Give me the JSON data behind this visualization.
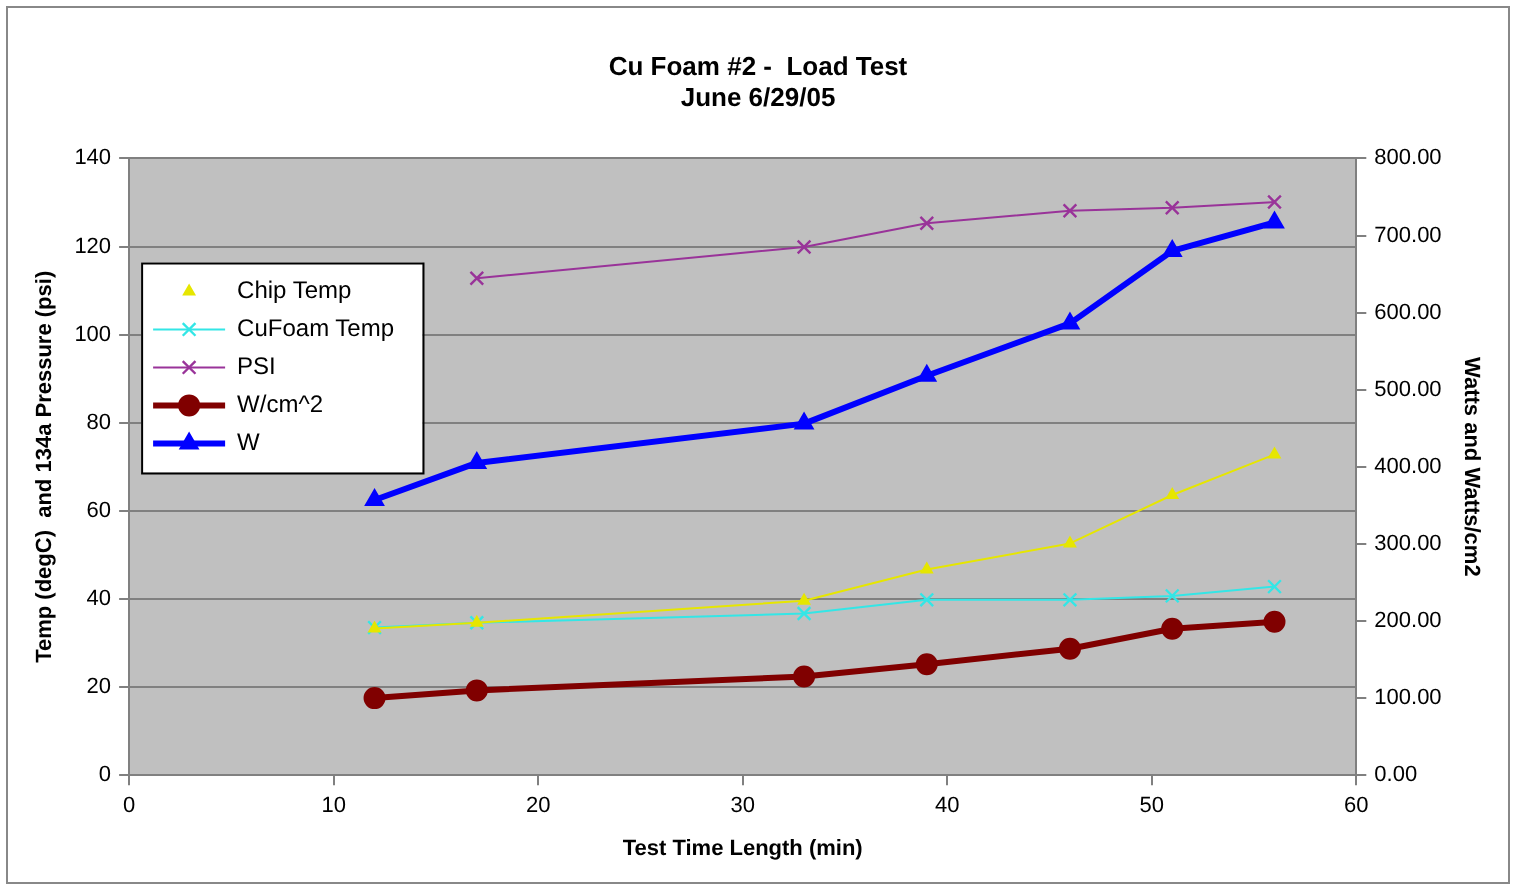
{
  "chart_data": {
    "type": "line",
    "title": "Cu Foam #2 -  Load Test",
    "subtitle": "June 6/29/05",
    "xlabel": "Test Time Length (min)",
    "ylabel": "Temp (degC)  and 134a Pressure (psi)",
    "y2label": "Watts and Watts/cm2",
    "x": [
      12,
      17,
      33,
      39,
      46,
      51,
      56
    ],
    "series": [
      {
        "name": "Chip Temp",
        "color": "#e6e600",
        "marker": "triangle",
        "values": [
          33.3,
          34.6,
          39.6,
          46.7,
          52.6,
          63.6,
          72.8
        ]
      },
      {
        "name": "CuFoam Temp",
        "color": "#33e6e6",
        "marker": "cross",
        "values": [
          33.5,
          34.6,
          36.7,
          39.8,
          39.8,
          40.7,
          42.8
        ]
      },
      {
        "name": "PSI",
        "color": "#993399",
        "marker": "cross",
        "values": [
          null,
          112.8,
          119.9,
          125.3,
          128.1,
          128.8,
          130.1
        ]
      },
      {
        "name": "W/cm^2",
        "color": "#800000",
        "marker": "circle",
        "axis": "y2",
        "values": [
          100,
          110,
          128,
          144,
          164,
          190,
          199
        ]
      },
      {
        "name": "W",
        "color": "#0000ff",
        "marker": "triangle",
        "axis": "y2",
        "values": [
          357,
          405,
          456,
          518,
          586,
          680,
          717
        ]
      }
    ],
    "xlim": [
      0,
      60
    ],
    "xticks": [
      0,
      10,
      20,
      30,
      40,
      50,
      60
    ],
    "ylim": [
      0,
      140
    ],
    "yticks": [
      0,
      20,
      40,
      60,
      80,
      100,
      120,
      140
    ],
    "y2lim": [
      0,
      800
    ],
    "y2ticks": [
      {
        "value": 0,
        "label": "0.00"
      },
      {
        "value": 100,
        "label": "100.00"
      },
      {
        "value": 200,
        "label": "200.00"
      },
      {
        "value": 300,
        "label": "300.00"
      },
      {
        "value": 400,
        "label": "400.00"
      },
      {
        "value": 500,
        "label": "500.00"
      },
      {
        "value": 600,
        "label": "600.00"
      },
      {
        "value": 700,
        "label": "700.00"
      },
      {
        "value": 800,
        "label": "800.00"
      }
    ],
    "grid": "y",
    "legend": "left",
    "line_style": "solid"
  }
}
